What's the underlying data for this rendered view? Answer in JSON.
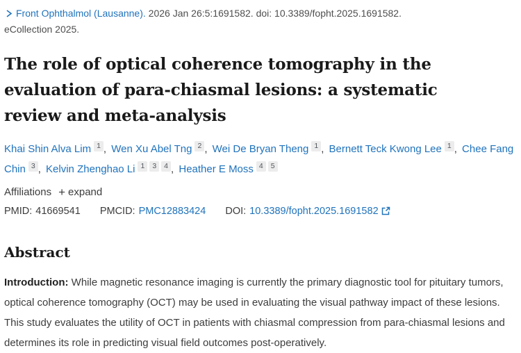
{
  "colors": {
    "link": "#2073bc",
    "heading_text": "#1a1a1a",
    "body_text": "#3c3c3c",
    "citation_text": "#4e4e4e",
    "superscript_bg": "#ececec"
  },
  "citation": {
    "journal_link": "Front Ophthalmol (Lausanne).",
    "details": "2026 Jan 26:5:1691582. doi: 10.3389/fopht.2025.1691582.",
    "ecollection": "eCollection 2025."
  },
  "title_lines": [
    "The role of optical coherence tomography in the",
    "evaluation of para-chiasmal lesions: a systematic",
    "review and meta-analysis"
  ],
  "authors": [
    {
      "name": "Khai Shin Alva Lim",
      "sups": [
        "1"
      ]
    },
    {
      "name": "Wen Xu Abel Tng",
      "sups": [
        "2"
      ]
    },
    {
      "name": "Wei De Bryan Theng",
      "sups": [
        "1"
      ]
    },
    {
      "name": "Bernett Teck Kwong Lee",
      "sups": [
        "1"
      ]
    },
    {
      "name": "Chee Fang Chin",
      "sups": [
        "3"
      ]
    },
    {
      "name": "Kelvin Zhenghao Li",
      "sups": [
        "1",
        "3",
        "4"
      ]
    },
    {
      "name": "Heather E Moss",
      "sups": [
        "4",
        "5"
      ]
    }
  ],
  "affiliations": {
    "label": "Affiliations",
    "plus": "+",
    "expand": "expand"
  },
  "ids": {
    "pmid_label": "PMID:",
    "pmid_value": "41669541",
    "pmcid_label": "PMCID:",
    "pmcid_value": "PMC12883424",
    "doi_label": "DOI:",
    "doi_value": "10.3389/fopht.2025.1691582"
  },
  "abstract": {
    "heading": "Abstract",
    "intro_label": "Introduction:",
    "body": "While magnetic resonance imaging is currently the primary diagnostic tool for pituitary tumors, optical coherence tomography (OCT) may be used in evaluating the visual pathway impact of these lesions. This study evaluates the utility of OCT in patients with chiasmal compression from para-chiasmal lesions and determines its role in predicting visual field outcomes post-operatively."
  }
}
